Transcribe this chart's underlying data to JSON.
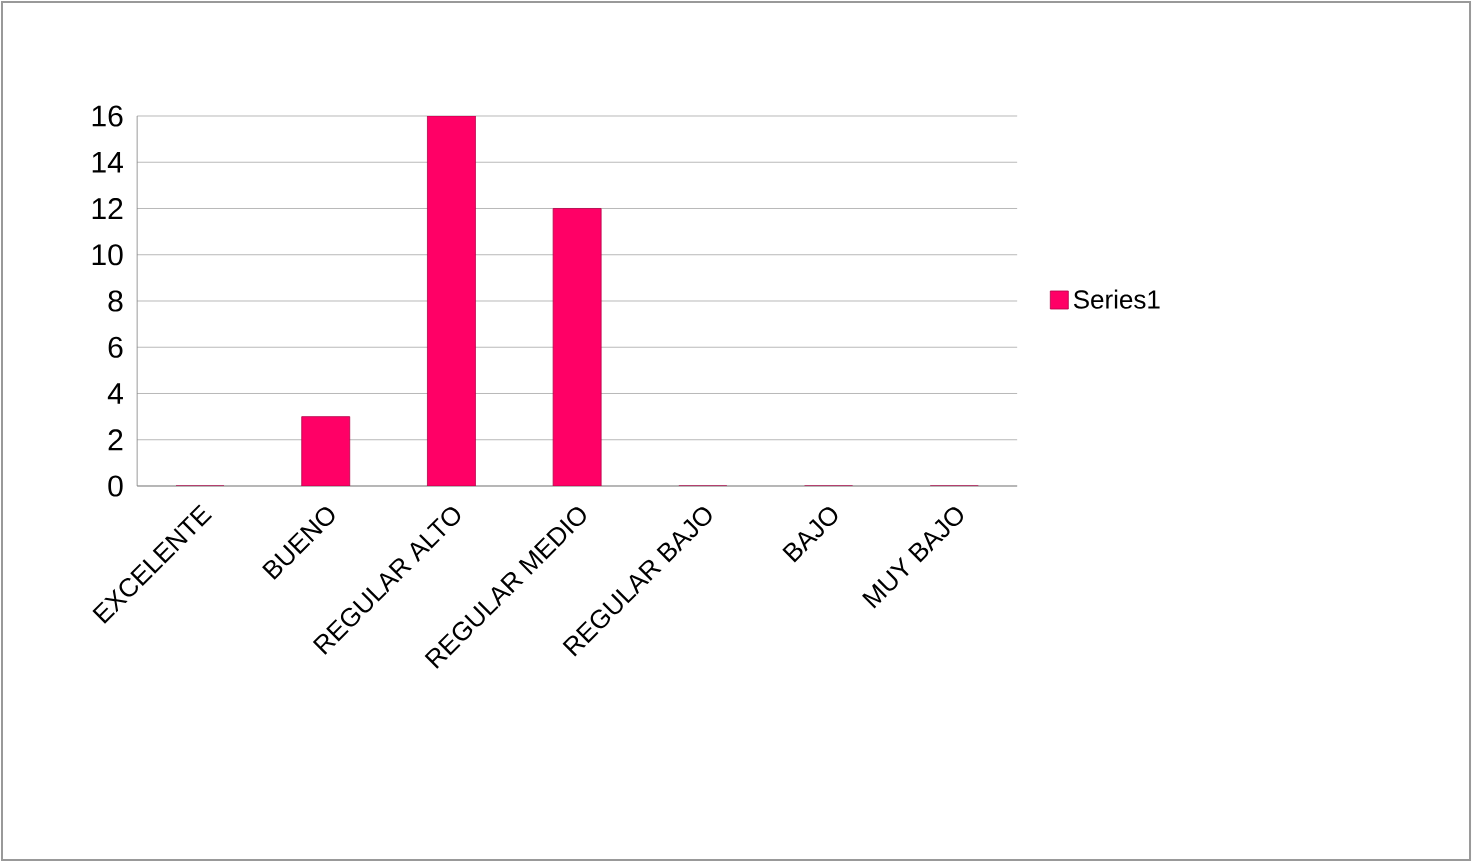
{
  "chart_data": {
    "type": "bar",
    "categories": [
      "EXCELENTE",
      "BUENO",
      "REGULAR ALTO",
      "REGULAR MEDIO",
      "REGULAR BAJO",
      "BAJO",
      "MUY BAJO"
    ],
    "series": [
      {
        "name": "Series1",
        "color": "#ff0066",
        "values": [
          0,
          3,
          16,
          12,
          0,
          0,
          0
        ]
      }
    ],
    "ylim": [
      0,
      16
    ],
    "yticks": [
      0,
      2,
      4,
      6,
      8,
      10,
      12,
      14,
      16
    ],
    "grid": "y",
    "legend": "right"
  }
}
